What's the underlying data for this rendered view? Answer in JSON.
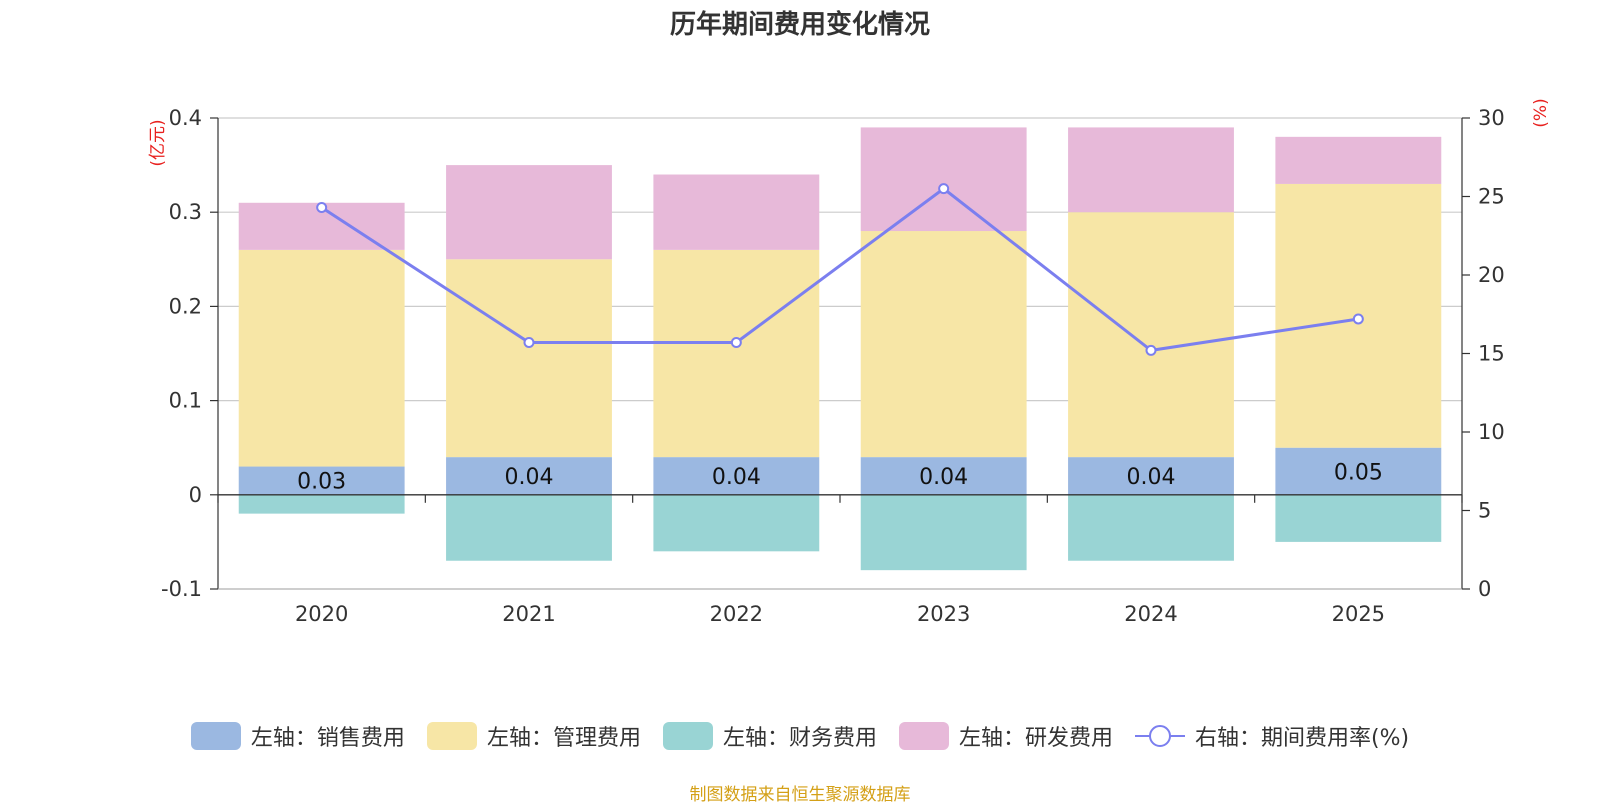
{
  "chart_data": {
    "type": "bar",
    "title": "历年期间费用变化情况",
    "categories": [
      "2020",
      "2021",
      "2022",
      "2023",
      "2024",
      "2025"
    ],
    "left_axis": {
      "unit": "(亿元)",
      "ylim": [
        -0.1,
        0.4
      ],
      "ticks": [
        -0.1,
        0,
        0.1,
        0.2,
        0.3,
        0.4
      ]
    },
    "right_axis": {
      "unit": "(%)",
      "ylim": [
        0,
        30
      ],
      "ticks": [
        0,
        5,
        10,
        15,
        20,
        25,
        30
      ]
    },
    "series": [
      {
        "name": "左轴：销售费用",
        "type": "bar",
        "axis": "left",
        "color": "#9bb8e1",
        "values": [
          0.03,
          0.04,
          0.04,
          0.04,
          0.04,
          0.05
        ],
        "labels": [
          "0.03",
          "0.04",
          "0.04",
          "0.04",
          "0.04",
          "0.05"
        ]
      },
      {
        "name": "左轴：管理费用",
        "type": "bar",
        "axis": "left",
        "color": "#f7e6a6",
        "values": [
          0.23,
          0.21,
          0.22,
          0.24,
          0.26,
          0.28
        ]
      },
      {
        "name": "左轴：财务费用",
        "type": "bar",
        "axis": "left",
        "color": "#99d4d4",
        "values": [
          -0.02,
          -0.07,
          -0.06,
          -0.08,
          -0.07,
          -0.05
        ]
      },
      {
        "name": "左轴：研发费用",
        "type": "bar",
        "axis": "left",
        "color": "#e7b9d9",
        "values": [
          0.05,
          0.1,
          0.08,
          0.11,
          0.09,
          0.05
        ]
      },
      {
        "name": "右轴：期间费用率(%)",
        "type": "line",
        "axis": "right",
        "color": "#7b7fef",
        "values": [
          24.3,
          15.7,
          15.7,
          25.5,
          15.2,
          17.2
        ]
      }
    ],
    "grid": true,
    "legend_position": "bottom"
  },
  "source_note": "制图数据来自恒生聚源数据库"
}
